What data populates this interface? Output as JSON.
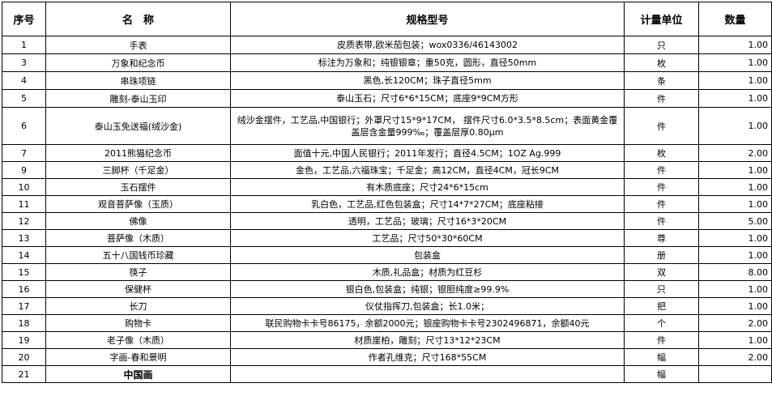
{
  "headers": {
    "no": "序号",
    "name": "名　称",
    "spec": "规格型号",
    "unit": "计量单位",
    "qty": "数量"
  },
  "rows": [
    {
      "no": "1",
      "name": "手表",
      "spec": "皮质表带,欧米茄包装；wox0336/46143002",
      "unit": "只",
      "qty": "1.00"
    },
    {
      "no": "3",
      "name": "万象和纪念币",
      "spec": "标注为万象和；纯银银章；重50克，圆形，直径50mm",
      "unit": "枚",
      "qty": "1.00"
    },
    {
      "no": "4",
      "name": "串珠项链",
      "spec": "黑色,长120CM；珠子直径5mm",
      "unit": "条",
      "qty": "1.00"
    },
    {
      "no": "5",
      "name": "雕刻-泰山玉印",
      "spec": "泰山玉石；尺寸6*6*15CM；底座9*9CM方形",
      "unit": "件",
      "qty": "1.00"
    },
    {
      "no": "6",
      "name": "泰山玉免送福(绒沙金)",
      "spec": "绒沙金摆件，工艺品,中国银行；外罩尺寸15*9*17CM， 摆件尺寸6.0*3.5*8.5cm；表面黄金覆盖层含金量999‰；覆盖层厚0.80μm",
      "unit": "件",
      "qty": "1.00"
    },
    {
      "no": "7",
      "name": "2011熊猫纪念币",
      "spec": "面值十元,中国人民银行；2011年发行；直径4.5CM；1OZ Ag.999",
      "unit": "枚",
      "qty": "2.00"
    },
    {
      "no": "9",
      "name": "三脚杯（千足金）",
      "spec": "金色，工艺品,六福珠宝；千足金；高12CM，直径4CM，冠长9CM",
      "unit": "件",
      "qty": "1.00"
    },
    {
      "no": "10",
      "name": "玉石摆件",
      "spec": "有木质底座；尺寸24*6*15cm",
      "unit": "件",
      "qty": "1.00"
    },
    {
      "no": "11",
      "name": "观音菩萨像（玉质）",
      "spec": "乳白色，工艺品,红色包装盒；尺寸14*7*27CM；底座粘接",
      "unit": "件",
      "qty": "1.00"
    },
    {
      "no": "12",
      "name": "佛像",
      "spec": "透明，工艺品；玻璃；尺寸16*3*20CM",
      "unit": "件",
      "qty": "5.00"
    },
    {
      "no": "13",
      "name": "菩萨像（木质）",
      "spec": "工艺品；尺寸50*30*60CM",
      "unit": "尊",
      "qty": "1.00"
    },
    {
      "no": "14",
      "name": "五十八国钱币珍藏",
      "spec": "包装盒",
      "unit": "册",
      "qty": "1.00"
    },
    {
      "no": "15",
      "name": "筷子",
      "spec": "木质,礼品盒；材质为红豆杉",
      "unit": "双",
      "qty": "8.00"
    },
    {
      "no": "16",
      "name": "保健杯",
      "spec": "银白色,包装盒；纯银；银胆纯度≥99.9%",
      "unit": "只",
      "qty": "1.00"
    },
    {
      "no": "17",
      "name": "长刀",
      "spec": "仪仗指挥刀,包装盒；长1.0米；",
      "unit": "把",
      "qty": "1.00"
    },
    {
      "no": "18",
      "name": "购物卡",
      "spec": "联民购物卡卡号86175，余额2000元；银座购物卡卡号2302496871，余额40元",
      "unit": "个",
      "qty": "2.00"
    },
    {
      "no": "19",
      "name": "老子像（木质）",
      "spec": "材质崖柏，雕刻；尺寸13*12*23CM",
      "unit": "件",
      "qty": "1.00"
    },
    {
      "no": "20",
      "name": "字画-春和景明",
      "spec": "作者孔维克；尺寸168*55CM",
      "unit": "幅",
      "qty": "2.00"
    },
    {
      "no": "21",
      "name": "中国画",
      "spec": "",
      "unit": "幅",
      "qty": ""
    }
  ]
}
